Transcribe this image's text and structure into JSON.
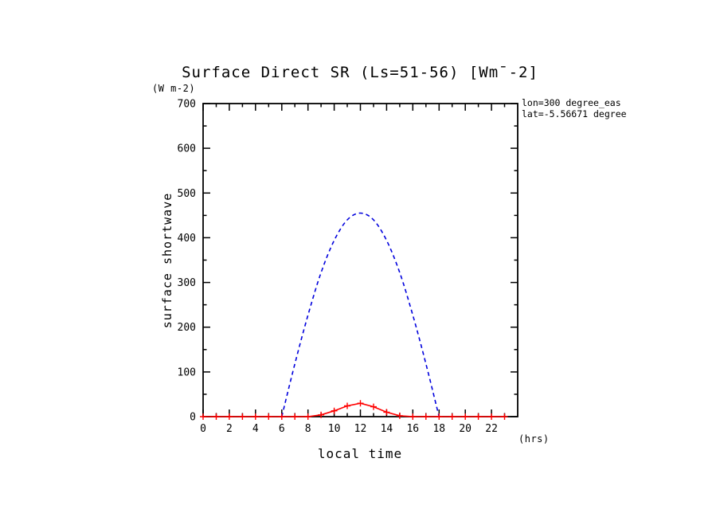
{
  "chart_data": {
    "type": "line",
    "title": "Surface Direct SR (Ls=51-56) [Wm¯-2]",
    "xlabel": "local time",
    "ylabel": "surface shortwave",
    "x_unit": "(hrs)",
    "y_unit": "(W m-2)",
    "xlim": [
      0,
      24
    ],
    "ylim": [
      0,
      700
    ],
    "x_major_ticks": [
      0,
      2,
      4,
      6,
      8,
      10,
      12,
      14,
      16,
      18,
      20,
      22
    ],
    "x_minor_step": 1,
    "y_major_ticks": [
      0,
      100,
      200,
      300,
      400,
      500,
      600,
      700
    ],
    "y_minor_step": 50,
    "grid": false,
    "legend": "none",
    "annotations": [
      "lon=300 degree_eas",
      "lat=-5.56671 degree"
    ],
    "axis_color": "#000000",
    "series": [
      {
        "name": "blue-dashed-curve",
        "color": "#0000dd",
        "style": "dashed",
        "marker": "none",
        "x": [
          6,
          7,
          8,
          9,
          10,
          11,
          12,
          13,
          14,
          15,
          16,
          17,
          18
        ],
        "y": [
          0,
          118,
          227,
          322,
          394,
          440,
          455,
          440,
          394,
          322,
          227,
          118,
          0
        ]
      },
      {
        "name": "red-solid-plus-curve",
        "color": "#ff0000",
        "style": "solid",
        "marker": "plus",
        "x": [
          0,
          1,
          2,
          3,
          4,
          5,
          6,
          7,
          8,
          9,
          10,
          11,
          12,
          13,
          14,
          15,
          16,
          17,
          18,
          19,
          20,
          21,
          22,
          23
        ],
        "y": [
          0,
          0,
          0,
          0,
          0,
          0,
          0,
          0,
          0,
          4,
          13,
          24,
          30,
          22,
          10,
          2,
          0,
          0,
          0,
          0,
          0,
          0,
          0,
          0
        ]
      }
    ]
  }
}
